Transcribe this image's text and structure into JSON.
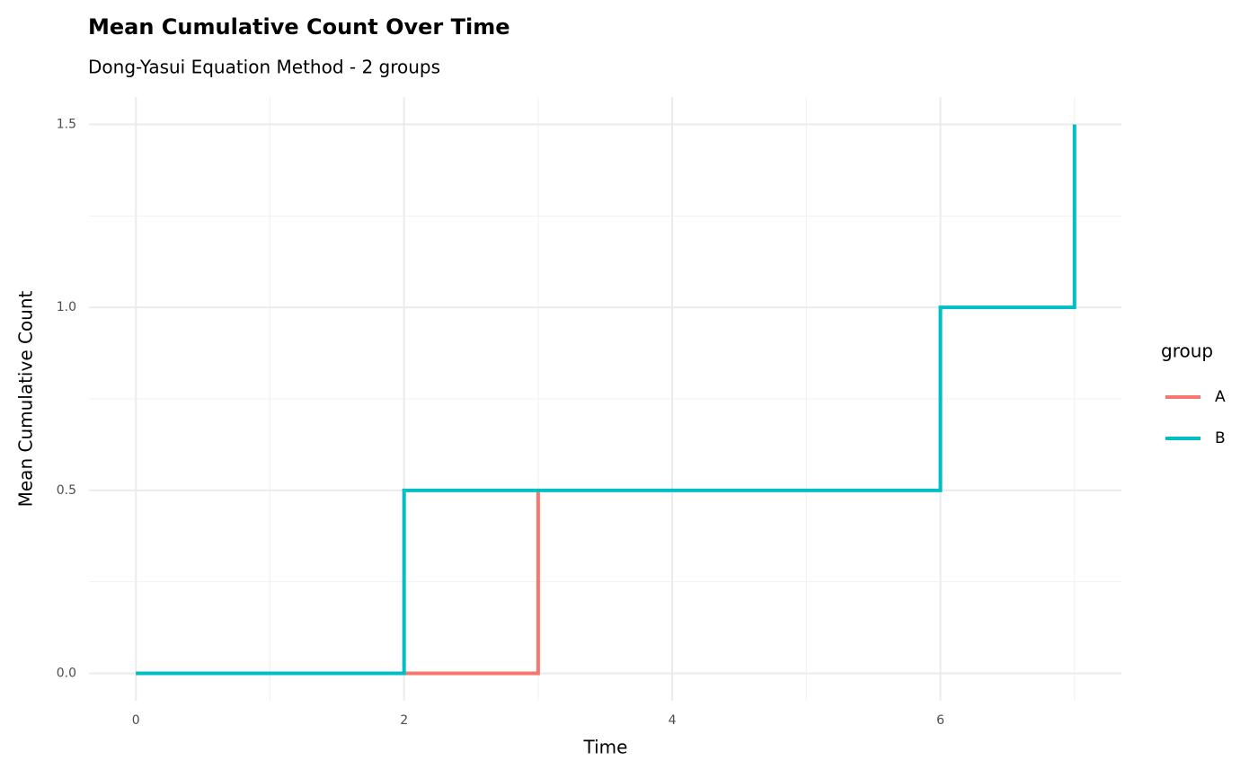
{
  "chart_data": {
    "type": "step",
    "title": "Mean Cumulative Count Over Time",
    "subtitle": "Dong-Yasui Equation Method - 2 groups",
    "x_label": "Time",
    "y_label": "Mean Cumulative Count",
    "legend_title": "group",
    "legend_position": "right",
    "grid": true,
    "xlim": [
      -0.35,
      7.35
    ],
    "ylim": [
      -0.075,
      1.575
    ],
    "xticks": [
      0,
      2,
      4,
      6
    ],
    "yticks": [
      {
        "value": 0,
        "label": "0.0"
      },
      0.5,
      {
        "value": 1,
        "label": "1.0"
      },
      1.5
    ],
    "xminor": [
      1,
      3,
      5,
      7
    ],
    "yminor": [
      0.25,
      0.75,
      1.25
    ],
    "series": [
      {
        "name": "A",
        "color": "#F8766D",
        "x": [
          0,
          3
        ],
        "values": [
          0,
          0.5
        ]
      },
      {
        "name": "B",
        "color": "#00BFC4",
        "x": [
          0,
          2,
          6,
          7
        ],
        "values": [
          0,
          0.5,
          1,
          1.5
        ]
      }
    ]
  }
}
